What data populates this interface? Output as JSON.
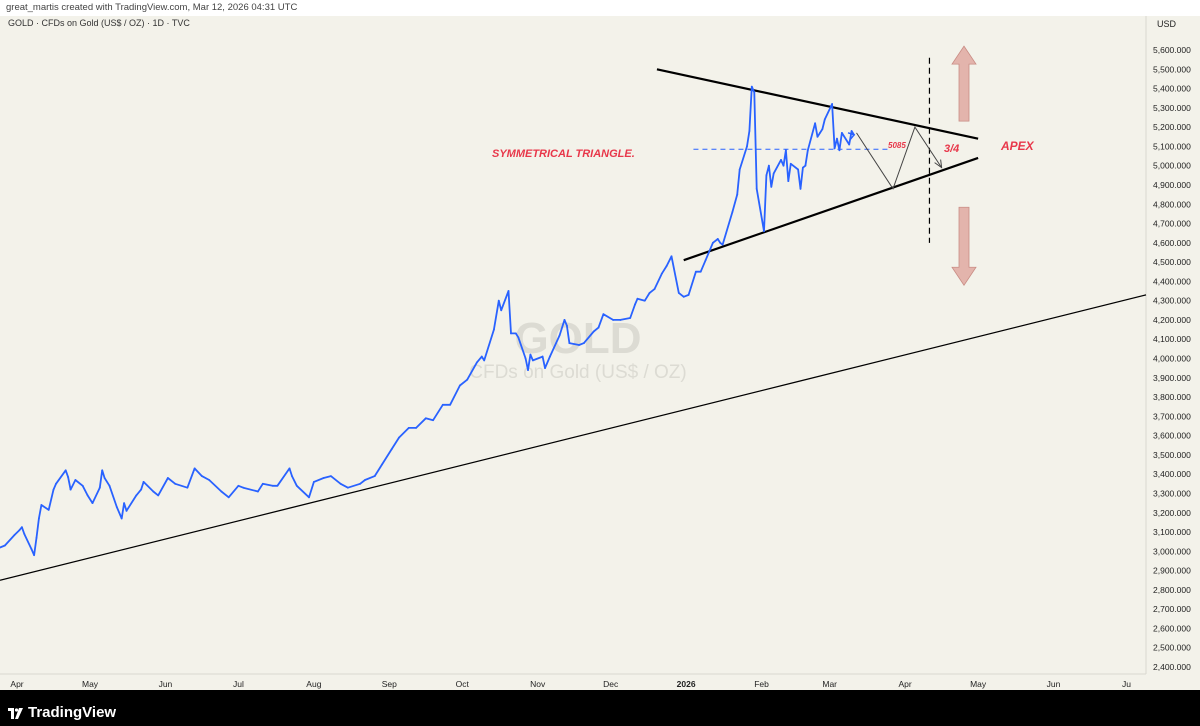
{
  "header": {
    "credit": "great_martis created with TradingView.com, Mar 12, 2026 04:31 UTC"
  },
  "footer": {
    "brand": "TradingView"
  },
  "chart_data": {
    "type": "line",
    "symbol_line": "GOLD · CFDs on Gold (US$ / OZ) · 1D · TVC",
    "watermark_symbol": "GOLD",
    "watermark_desc": "CFDs on Gold (US$ / OZ)",
    "currency": "USD",
    "line_color": "#2962ff",
    "ylim": [
      2300,
      5700
    ],
    "y_ticks": [
      2400,
      2500,
      2600,
      2700,
      2800,
      2900,
      3000,
      3100,
      3200,
      3300,
      3400,
      3500,
      3600,
      3700,
      3800,
      3900,
      4000,
      4100,
      4200,
      4300,
      4400,
      4500,
      4600,
      4700,
      4800,
      4900,
      5000,
      5100,
      5200,
      5300,
      5400,
      5500,
      5600
    ],
    "y_tick_labels": [
      "2,400.000",
      "2,500.000",
      "2,600.000",
      "2,700.000",
      "2,800.000",
      "2,900.000",
      "3,000.000",
      "3,100.000",
      "3,200.000",
      "3,300.000",
      "3,400.000",
      "3,500.000",
      "3,600.000",
      "3,700.000",
      "3,800.000",
      "3,900.000",
      "4,000.000",
      "4,100.000",
      "4,200.000",
      "4,300.000",
      "4,400.000",
      "4,500.000",
      "4,600.000",
      "4,700.000",
      "4,800.000",
      "4,900.000",
      "5,000.000",
      "5,100.000",
      "5,200.000",
      "5,300.000",
      "5,400.000",
      "5,500.000",
      "5,600.000"
    ],
    "x_ticks": [
      "2025-04-01",
      "2025-05-01",
      "2025-06-01",
      "2025-07-01",
      "2025-08-01",
      "2025-09-01",
      "2025-10-01",
      "2025-11-01",
      "2025-12-01",
      "2026-01-01",
      "2026-02-01",
      "2026-03-01",
      "2026-04-01",
      "2026-05-01",
      "2026-06-01",
      "2026-07-01"
    ],
    "x_tick_labels": [
      "Apr",
      "May",
      "Jun",
      "Jul",
      "Aug",
      "Sep",
      "Oct",
      "Nov",
      "Dec",
      "2026",
      "Feb",
      "Mar",
      "Apr",
      "May",
      "Jun",
      "Ju"
    ],
    "x_range": [
      "2025-03-25",
      "2026-07-09"
    ],
    "series": [
      {
        "points": [
          [
            "2025-03-25",
            3020
          ],
          [
            "2025-03-27",
            3030
          ],
          [
            "2025-03-31",
            3085
          ],
          [
            "2025-04-02",
            3110
          ],
          [
            "2025-04-03",
            3125
          ],
          [
            "2025-04-04",
            3090
          ],
          [
            "2025-04-07",
            3010
          ],
          [
            "2025-04-08",
            2980
          ],
          [
            "2025-04-09",
            3070
          ],
          [
            "2025-04-10",
            3170
          ],
          [
            "2025-04-11",
            3240
          ],
          [
            "2025-04-14",
            3215
          ],
          [
            "2025-04-16",
            3320
          ],
          [
            "2025-04-17",
            3350
          ],
          [
            "2025-04-21",
            3420
          ],
          [
            "2025-04-22",
            3385
          ],
          [
            "2025-04-23",
            3320
          ],
          [
            "2025-04-25",
            3370
          ],
          [
            "2025-04-28",
            3340
          ],
          [
            "2025-04-30",
            3290
          ],
          [
            "2025-05-02",
            3250
          ],
          [
            "2025-05-05",
            3330
          ],
          [
            "2025-05-06",
            3420
          ],
          [
            "2025-05-07",
            3380
          ],
          [
            "2025-05-09",
            3340
          ],
          [
            "2025-05-12",
            3230
          ],
          [
            "2025-05-14",
            3170
          ],
          [
            "2025-05-15",
            3250
          ],
          [
            "2025-05-16",
            3210
          ],
          [
            "2025-05-20",
            3290
          ],
          [
            "2025-05-22",
            3320
          ],
          [
            "2025-05-23",
            3360
          ],
          [
            "2025-05-27",
            3310
          ],
          [
            "2025-05-29",
            3290
          ],
          [
            "2025-06-02",
            3380
          ],
          [
            "2025-06-05",
            3350
          ],
          [
            "2025-06-10",
            3330
          ],
          [
            "2025-06-13",
            3430
          ],
          [
            "2025-06-16",
            3390
          ],
          [
            "2025-06-19",
            3370
          ],
          [
            "2025-06-24",
            3310
          ],
          [
            "2025-06-27",
            3280
          ],
          [
            "2025-07-01",
            3340
          ],
          [
            "2025-07-03",
            3330
          ],
          [
            "2025-07-09",
            3310
          ],
          [
            "2025-07-11",
            3350
          ],
          [
            "2025-07-15",
            3340
          ],
          [
            "2025-07-17",
            3340
          ],
          [
            "2025-07-22",
            3430
          ],
          [
            "2025-07-23",
            3390
          ],
          [
            "2025-07-25",
            3340
          ],
          [
            "2025-07-30",
            3280
          ],
          [
            "2025-08-01",
            3360
          ],
          [
            "2025-08-05",
            3380
          ],
          [
            "2025-08-08",
            3390
          ],
          [
            "2025-08-12",
            3350
          ],
          [
            "2025-08-15",
            3330
          ],
          [
            "2025-08-20",
            3350
          ],
          [
            "2025-08-22",
            3370
          ],
          [
            "2025-08-26",
            3390
          ],
          [
            "2025-08-29",
            3450
          ],
          [
            "2025-09-02",
            3530
          ],
          [
            "2025-09-05",
            3590
          ],
          [
            "2025-09-09",
            3640
          ],
          [
            "2025-09-12",
            3640
          ],
          [
            "2025-09-16",
            3690
          ],
          [
            "2025-09-19",
            3680
          ],
          [
            "2025-09-23",
            3760
          ],
          [
            "2025-09-26",
            3760
          ],
          [
            "2025-09-30",
            3860
          ],
          [
            "2025-10-03",
            3890
          ],
          [
            "2025-10-07",
            3980
          ],
          [
            "2025-10-09",
            4010
          ],
          [
            "2025-10-10",
            3990
          ],
          [
            "2025-10-14",
            4150
          ],
          [
            "2025-10-16",
            4300
          ],
          [
            "2025-10-17",
            4250
          ],
          [
            "2025-10-20",
            4350
          ],
          [
            "2025-10-21",
            4130
          ],
          [
            "2025-10-23",
            4130
          ],
          [
            "2025-10-24",
            4110
          ],
          [
            "2025-10-27",
            4000
          ],
          [
            "2025-10-28",
            3940
          ],
          [
            "2025-10-29",
            4020
          ],
          [
            "2025-10-30",
            3990
          ],
          [
            "2025-11-03",
            4010
          ],
          [
            "2025-11-04",
            3950
          ],
          [
            "2025-11-06",
            4010
          ],
          [
            "2025-11-10",
            4120
          ],
          [
            "2025-11-12",
            4200
          ],
          [
            "2025-11-13",
            4170
          ],
          [
            "2025-11-14",
            4080
          ],
          [
            "2025-11-18",
            4070
          ],
          [
            "2025-11-20",
            4080
          ],
          [
            "2025-11-24",
            4140
          ],
          [
            "2025-11-26",
            4160
          ],
          [
            "2025-11-28",
            4230
          ],
          [
            "2025-12-02",
            4200
          ],
          [
            "2025-12-05",
            4200
          ],
          [
            "2025-12-09",
            4210
          ],
          [
            "2025-12-11",
            4280
          ],
          [
            "2025-12-12",
            4310
          ],
          [
            "2025-12-15",
            4300
          ],
          [
            "2025-12-17",
            4340
          ],
          [
            "2025-12-19",
            4360
          ],
          [
            "2025-12-22",
            4440
          ],
          [
            "2025-12-24",
            4480
          ],
          [
            "2025-12-26",
            4530
          ],
          [
            "2025-12-29",
            4340
          ],
          [
            "2025-12-31",
            4320
          ],
          [
            "2026-01-02",
            4330
          ],
          [
            "2026-01-05",
            4450
          ],
          [
            "2026-01-07",
            4450
          ],
          [
            "2026-01-09",
            4510
          ],
          [
            "2026-01-12",
            4600
          ],
          [
            "2026-01-14",
            4620
          ],
          [
            "2026-01-15",
            4600
          ],
          [
            "2026-01-16",
            4590
          ],
          [
            "2026-01-20",
            4760
          ],
          [
            "2026-01-22",
            4850
          ],
          [
            "2026-01-23",
            4980
          ],
          [
            "2026-01-26",
            5100
          ],
          [
            "2026-01-27",
            5180
          ],
          [
            "2026-01-28",
            5410
          ],
          [
            "2026-01-29",
            5380
          ],
          [
            "2026-01-30",
            4880
          ],
          [
            "2026-02-02",
            4660
          ],
          [
            "2026-02-03",
            4950
          ],
          [
            "2026-02-04",
            5000
          ],
          [
            "2026-02-05",
            4890
          ],
          [
            "2026-02-06",
            4960
          ],
          [
            "2026-02-09",
            5030
          ],
          [
            "2026-02-10",
            5000
          ],
          [
            "2026-02-11",
            5080
          ],
          [
            "2026-02-12",
            4920
          ],
          [
            "2026-02-13",
            5010
          ],
          [
            "2026-02-16",
            4980
          ],
          [
            "2026-02-17",
            4880
          ],
          [
            "2026-02-18",
            4990
          ],
          [
            "2026-02-19",
            5000
          ],
          [
            "2026-02-20",
            5080
          ],
          [
            "2026-02-23",
            5220
          ],
          [
            "2026-02-24",
            5150
          ],
          [
            "2026-02-25",
            5170
          ],
          [
            "2026-02-26",
            5190
          ],
          [
            "2026-02-27",
            5240
          ],
          [
            "2026-03-02",
            5320
          ],
          [
            "2026-03-03",
            5090
          ],
          [
            "2026-03-04",
            5140
          ],
          [
            "2026-03-05",
            5080
          ],
          [
            "2026-03-06",
            5170
          ],
          [
            "2026-03-09",
            5110
          ],
          [
            "2026-03-10",
            5180
          ],
          [
            "2026-03-11",
            5160
          ]
        ]
      }
    ],
    "drawings": {
      "resistance": [
        [
          "2025-12-20",
          5500
        ],
        [
          "2026-05-01",
          5140
        ]
      ],
      "support": [
        [
          "2025-12-31",
          4510
        ],
        [
          "2026-05-01",
          5040
        ]
      ],
      "long_trend": [
        [
          "2025-03-25",
          2850
        ],
        [
          "2026-07-09",
          4330
        ]
      ],
      "projection": [
        [
          "2026-03-12",
          5170
        ],
        [
          "2026-03-27",
          4880
        ],
        [
          "2026-04-05",
          5200
        ],
        [
          "2026-04-16",
          4990
        ]
      ],
      "level_line": {
        "from": "2026-01-04",
        "to": "2026-03-25",
        "value": 5085
      },
      "vertical_marker": {
        "date": "2026-04-11",
        "from": 4600,
        "to": 5560
      },
      "arrow_up_top": 5620,
      "arrow_down_bottom": 4380
    },
    "annotations": {
      "pattern_label": "SYMMETRICAL TRIANGLE.",
      "level_label": "5085",
      "fraction_label": "3/4",
      "apex_label": "APEX"
    }
  }
}
